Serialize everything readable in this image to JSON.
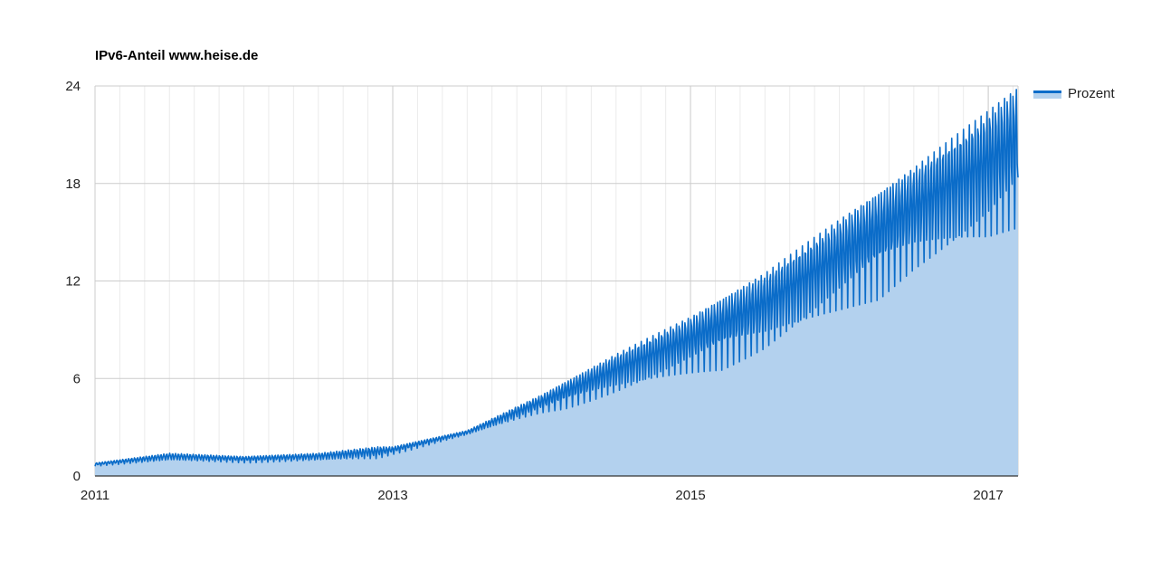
{
  "chart_data": {
    "type": "area",
    "title": "IPv6-Anteil www.heise.de",
    "xlabel": "",
    "ylabel": "",
    "xlim": [
      2011.0,
      2017.2
    ],
    "ylim": [
      0,
      24
    ],
    "x_ticks": [
      {
        "value": 2011,
        "label": "2011"
      },
      {
        "value": 2013,
        "label": "2013"
      },
      {
        "value": 2015,
        "label": "2015"
      },
      {
        "value": 2017,
        "label": "2017"
      }
    ],
    "y_ticks": [
      {
        "value": 0,
        "label": "0"
      },
      {
        "value": 6,
        "label": "6"
      },
      {
        "value": 12,
        "label": "12"
      },
      {
        "value": 18,
        "label": "18"
      },
      {
        "value": 24,
        "label": "24"
      }
    ],
    "grid": true,
    "legend": {
      "position": "right",
      "entries": [
        "Prozent"
      ]
    },
    "colors": {
      "line": "#0a6cc9",
      "fill": "#b3d1ee",
      "grid": "#cccccc"
    },
    "series": [
      {
        "name": "Prozent",
        "x": [
          2011.0,
          2011.5,
          2012.0,
          2012.5,
          2012.9,
          2013.0,
          2013.5,
          2014.0,
          2014.5,
          2015.0,
          2015.5,
          2016.0,
          2016.5,
          2017.0,
          2017.2
        ],
        "high": [
          0.8,
          1.4,
          1.2,
          1.4,
          1.8,
          1.8,
          2.8,
          5.0,
          7.5,
          9.8,
          12.5,
          15.8,
          19.0,
          22.5,
          24.0
        ],
        "low": [
          0.6,
          0.9,
          0.8,
          0.9,
          1.0,
          1.3,
          2.5,
          3.8,
          4.8,
          6.0,
          7.2,
          9.5,
          12.0,
          13.5,
          14.8
        ]
      }
    ]
  }
}
